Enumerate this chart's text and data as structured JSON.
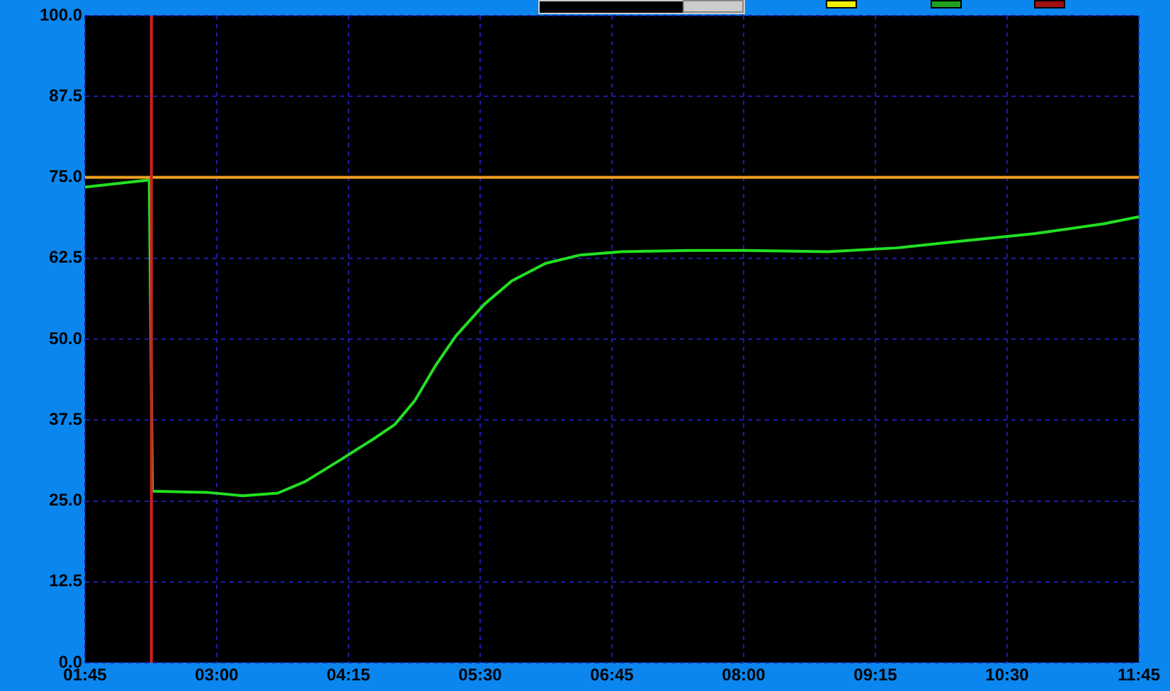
{
  "chart_data": {
    "type": "line",
    "x": [
      1.75,
      2.36,
      2.39,
      2.92,
      3.25,
      3.58,
      3.84,
      4.17,
      4.49,
      4.69,
      4.88,
      5.08,
      5.27,
      5.54,
      5.8,
      6.12,
      6.45,
      6.84,
      7.49,
      8.02,
      8.8,
      9.45,
      10.1,
      10.76,
      11.41,
      11.75
    ],
    "series": [
      {
        "color": "#22e022",
        "values": [
          73.5,
          74.6,
          26.5,
          26.3,
          25.8,
          26.2,
          28,
          31.3,
          34.6,
          36.8,
          40.5,
          46,
          50.5,
          55.4,
          59,
          61.7,
          63,
          63.5,
          63.7,
          63.7,
          63.5,
          64.1,
          65.2,
          66.3,
          67.8,
          68.9
        ]
      }
    ],
    "xlim": [
      1.75,
      11.75
    ],
    "xticks": [
      {
        "value": 1.75,
        "label": "01:45"
      },
      {
        "value": 3,
        "label": "03:00"
      },
      {
        "value": 4.25,
        "label": "04:15"
      },
      {
        "value": 5.5,
        "label": "05:30"
      },
      {
        "value": 6.75,
        "label": "06:45"
      },
      {
        "value": 8,
        "label": "08:00"
      },
      {
        "value": 9.25,
        "label": "09:15"
      },
      {
        "value": 10.5,
        "label": "10:30"
      },
      {
        "value": 11.75,
        "label": "11:45"
      }
    ],
    "ylim": [
      0,
      100
    ],
    "yticks": [
      {
        "value": 0,
        "label": "0.0"
      },
      12.5,
      {
        "value": 25,
        "label": "25.0"
      },
      37.5,
      {
        "value": 50,
        "label": "50.0"
      },
      62.5,
      {
        "value": 75,
        "label": "75.0"
      },
      87.5,
      {
        "value": 100,
        "label": "100.0"
      }
    ],
    "ref_lines": [
      {
        "axis": "y",
        "value": 75,
        "color": "#f0a020"
      },
      {
        "axis": "x",
        "value": 2.38,
        "color": "#d02020"
      }
    ],
    "grid": true,
    "line_style": "solid",
    "marker": "none"
  }
}
